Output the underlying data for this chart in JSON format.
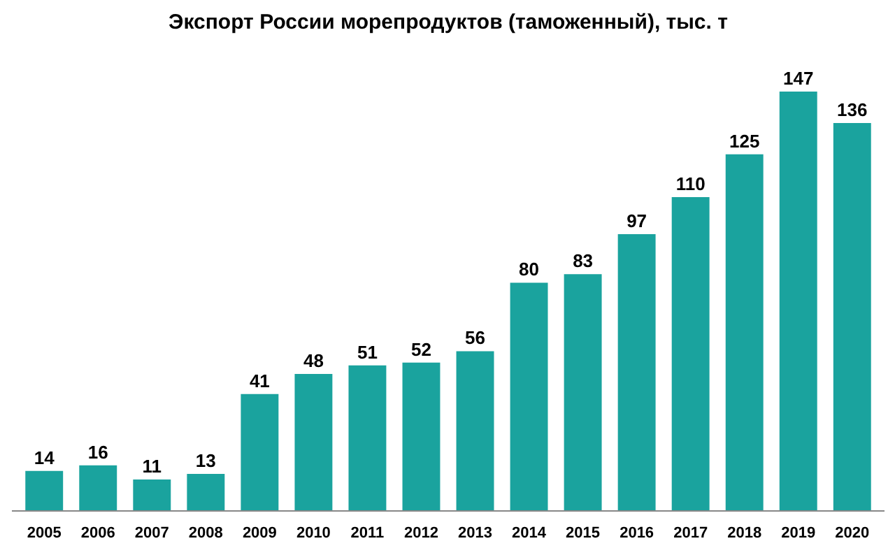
{
  "chart_data": {
    "type": "bar",
    "title": "Экспорт России морепродуктов (таможенный), тыс. т",
    "categories": [
      "2005",
      "2006",
      "2007",
      "2008",
      "2009",
      "2010",
      "2011",
      "2012",
      "2013",
      "2014",
      "2015",
      "2016",
      "2017",
      "2018",
      "2019",
      "2020"
    ],
    "values": [
      14,
      16,
      11,
      13,
      41,
      48,
      51,
      52,
      56,
      80,
      83,
      97,
      110,
      125,
      147,
      136
    ],
    "color": "#1aa39e",
    "data_labels": true
  }
}
